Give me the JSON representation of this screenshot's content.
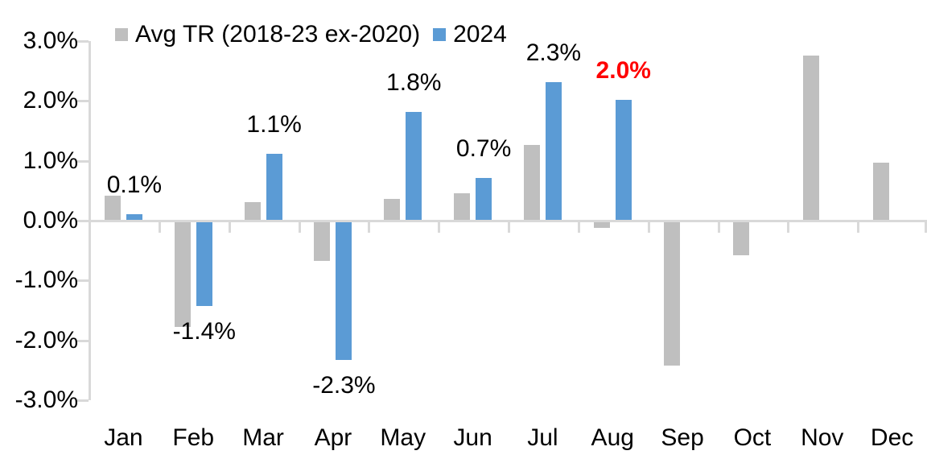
{
  "chart_data": {
    "type": "bar",
    "title": "",
    "xlabel": "",
    "ylabel": "",
    "categories": [
      "Jan",
      "Feb",
      "Mar",
      "Apr",
      "May",
      "Jun",
      "Jul",
      "Aug",
      "Sep",
      "Oct",
      "Nov",
      "Dec"
    ],
    "series": [
      {
        "name": "Avg TR (2018-23 ex-2020)",
        "color": "#BFBFBF",
        "values": [
          0.4,
          -1.75,
          0.3,
          -0.65,
          0.35,
          0.45,
          1.25,
          -0.1,
          -2.4,
          -0.55,
          2.75,
          0.95
        ]
      },
      {
        "name": "2024",
        "color": "#5B9BD5",
        "values": [
          0.1,
          -1.4,
          1.1,
          -2.3,
          1.8,
          0.7,
          2.3,
          2.0,
          null,
          null,
          null,
          null
        ]
      }
    ],
    "data_labels": {
      "series": "2024",
      "emphasis_color": "#FF0000",
      "items": [
        {
          "category": "Jan",
          "text": "0.1%",
          "emphasis": false
        },
        {
          "category": "Feb",
          "text": "-1.4%",
          "emphasis": false
        },
        {
          "category": "Mar",
          "text": "1.1%",
          "emphasis": false
        },
        {
          "category": "Apr",
          "text": "-2.3%",
          "emphasis": false
        },
        {
          "category": "May",
          "text": "1.8%",
          "emphasis": false
        },
        {
          "category": "Jun",
          "text": "0.7%",
          "emphasis": false
        },
        {
          "category": "Jul",
          "text": "2.3%",
          "emphasis": false
        },
        {
          "category": "Aug",
          "text": "2.0%",
          "emphasis": true
        }
      ]
    },
    "y_axis": {
      "min": -3,
      "max": 3,
      "step": 1,
      "tick_labels": [
        "3.0%",
        "2.0%",
        "1.0%",
        "0.0%",
        "-1.0%",
        "-2.0%",
        "-3.0%"
      ]
    },
    "legend_position": "top",
    "grid": false,
    "axis_color": "#D9D9D9",
    "text_color": "#000000"
  }
}
